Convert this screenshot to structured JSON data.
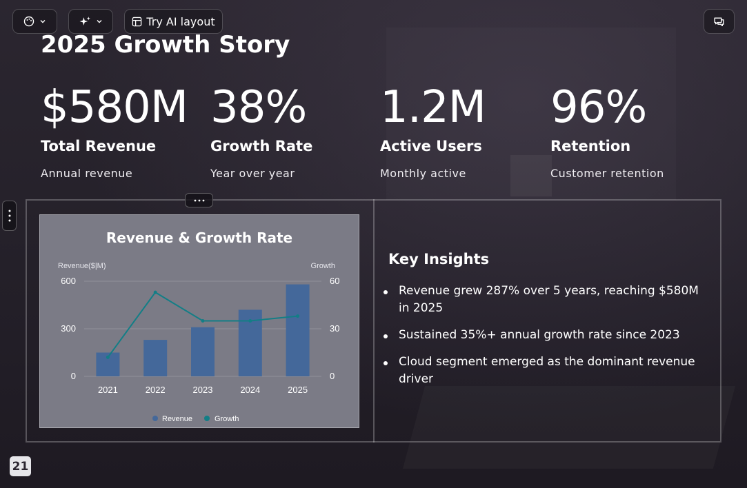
{
  "toolbar": {
    "ai_layout_label": "Try AI layout",
    "theme_icon": "palette-icon",
    "magic_icon": "sparkles-icon",
    "layout_icon": "layout-icon",
    "comment_icon": "comment-icon"
  },
  "slide": {
    "title": "2025 Growth Story",
    "stats": [
      {
        "value": "$580M",
        "label": "Total Revenue",
        "desc": "Annual revenue"
      },
      {
        "value": "38%",
        "label": "Growth Rate",
        "desc": "Year over year"
      },
      {
        "value": "1.2M",
        "label": "Active Users",
        "desc": "Monthly active"
      },
      {
        "value": "96%",
        "label": "Retention",
        "desc": "Customer retention"
      }
    ],
    "insights_title": "Key Insights",
    "insights": [
      "Revenue grew 287% over 5 years, reaching $580M in 2025",
      "Sustained 35%+ annual growth rate since 2023",
      "Cloud segment emerged as the dominant revenue driver"
    ],
    "page_number": "21"
  },
  "colors": {
    "bar": "#44689a",
    "line": "#137e86",
    "chart_bg": "#7b7b86"
  },
  "chart_data": {
    "type": "bar",
    "title": "Revenue & Growth Rate",
    "categories": [
      "2021",
      "2022",
      "2023",
      "2024",
      "2025"
    ],
    "ylabel": "Revenue($|M)",
    "y2label": "Growth",
    "ylim": [
      0,
      600
    ],
    "y2lim": [
      0,
      60
    ],
    "yticks": [
      "600",
      "300",
      "0"
    ],
    "y2ticks": [
      "60",
      "30",
      "0"
    ],
    "series": [
      {
        "name": "Revenue",
        "type": "bar",
        "values": [
          150,
          230,
          310,
          420,
          580
        ]
      },
      {
        "name": "Growth",
        "type": "line",
        "values": [
          12,
          53,
          35,
          35,
          38
        ]
      }
    ],
    "legend": "bottom"
  }
}
